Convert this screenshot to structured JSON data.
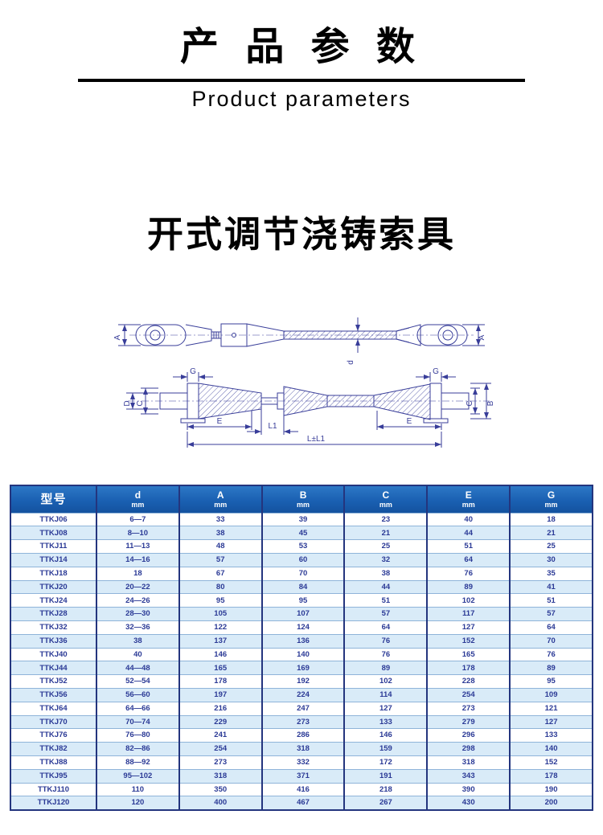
{
  "header": {
    "title_cn": "产 品 参 数",
    "subtitle_en": "Product parameters"
  },
  "product": {
    "title": "开式调节浇铸索具"
  },
  "drawing": {
    "labels": {
      "a": "A",
      "d": "d",
      "g": "G",
      "big_d": "D",
      "c": "C",
      "b": "B",
      "e": "E",
      "l1": "L1",
      "l_total": "L±L1"
    },
    "line_color": "#383d99"
  },
  "colors": {
    "header_blue": "#1a60b2",
    "border_navy": "#24357e",
    "row_alt_blue": "#d9ebf8",
    "cell_text_navy": "#2b3a96"
  },
  "table": {
    "columns": [
      {
        "label": "型号",
        "unit": ""
      },
      {
        "label": "d",
        "unit": "mm"
      },
      {
        "label": "A",
        "unit": "mm"
      },
      {
        "label": "B",
        "unit": "mm"
      },
      {
        "label": "C",
        "unit": "mm"
      },
      {
        "label": "E",
        "unit": "mm"
      },
      {
        "label": "G",
        "unit": "mm"
      }
    ],
    "rows": [
      [
        "TTKJ06",
        "6—7",
        "33",
        "39",
        "23",
        "40",
        "18"
      ],
      [
        "TTKJ08",
        "8—10",
        "38",
        "45",
        "21",
        "44",
        "21"
      ],
      [
        "TTKJ11",
        "11—13",
        "48",
        "53",
        "25",
        "51",
        "25"
      ],
      [
        "TTKJ14",
        "14—16",
        "57",
        "60",
        "32",
        "64",
        "30"
      ],
      [
        "TTKJ18",
        "18",
        "67",
        "70",
        "38",
        "76",
        "35"
      ],
      [
        "TTKJ20",
        "20—22",
        "80",
        "84",
        "44",
        "89",
        "41"
      ],
      [
        "TTKJ24",
        "24—26",
        "95",
        "95",
        "51",
        "102",
        "51"
      ],
      [
        "TTKJ28",
        "28—30",
        "105",
        "107",
        "57",
        "117",
        "57"
      ],
      [
        "TTKJ32",
        "32—36",
        "122",
        "124",
        "64",
        "127",
        "64"
      ],
      [
        "TTKJ36",
        "38",
        "137",
        "136",
        "76",
        "152",
        "70"
      ],
      [
        "TTKJ40",
        "40",
        "146",
        "140",
        "76",
        "165",
        "76"
      ],
      [
        "TTKJ44",
        "44—48",
        "165",
        "169",
        "89",
        "178",
        "89"
      ],
      [
        "TTKJ52",
        "52—54",
        "178",
        "192",
        "102",
        "228",
        "95"
      ],
      [
        "TTKJ56",
        "56—60",
        "197",
        "224",
        "114",
        "254",
        "109"
      ],
      [
        "TTKJ64",
        "64—66",
        "216",
        "247",
        "127",
        "273",
        "121"
      ],
      [
        "TTKJ70",
        "70—74",
        "229",
        "273",
        "133",
        "279",
        "127"
      ],
      [
        "TTKJ76",
        "76—80",
        "241",
        "286",
        "146",
        "296",
        "133"
      ],
      [
        "TTKJ82",
        "82—86",
        "254",
        "318",
        "159",
        "298",
        "140"
      ],
      [
        "TTKJ88",
        "88—92",
        "273",
        "332",
        "172",
        "318",
        "152"
      ],
      [
        "TTKJ95",
        "95—102",
        "318",
        "371",
        "191",
        "343",
        "178"
      ],
      [
        "TTKJ110",
        "110",
        "350",
        "416",
        "218",
        "390",
        "190"
      ],
      [
        "TTKJ120",
        "120",
        "400",
        "467",
        "267",
        "430",
        "200"
      ]
    ]
  }
}
